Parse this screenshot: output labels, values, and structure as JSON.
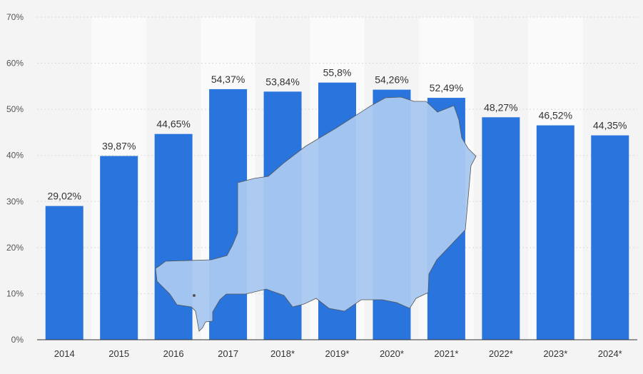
{
  "chart_data": {
    "type": "bar",
    "title": "",
    "xlabel": "",
    "ylabel": "",
    "categories": [
      "2014",
      "2015",
      "2016",
      "2017",
      "2018*",
      "2019*",
      "2020*",
      "2021*",
      "2022*",
      "2023*",
      "2024*"
    ],
    "values": [
      29.02,
      39.87,
      44.65,
      54.37,
      53.84,
      55.8,
      54.26,
      52.49,
      48.27,
      46.52,
      44.35
    ],
    "data_labels": [
      "29,02%",
      "39,87%",
      "44,65%",
      "54,37%",
      "53,84%",
      "55,8%",
      "54,26%",
      "52,49%",
      "48,27%",
      "46,52%",
      "44,35%"
    ],
    "ylim": [
      0,
      70
    ],
    "yticks": [
      "0%",
      "10%",
      "20%",
      "30%",
      "40%",
      "50%",
      "60%",
      "70%"
    ],
    "grid": true,
    "colors": {
      "bar": "#2a75dd",
      "background": "#f4f4f4",
      "band": "#fafafa",
      "map_fill": "#a9c8f0",
      "map_stroke": "#555555"
    }
  }
}
